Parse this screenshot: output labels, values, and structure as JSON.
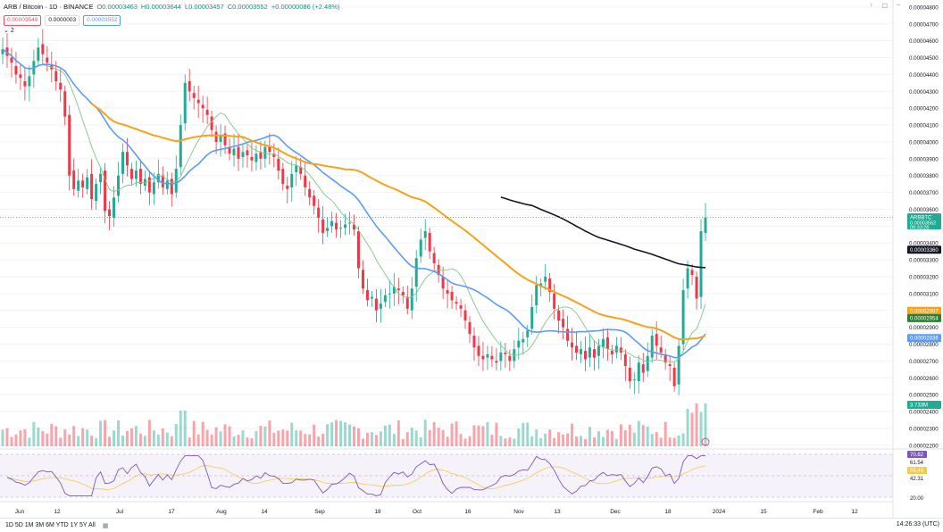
{
  "legend": {
    "title": "ARB / Bitcoin · 1D · BINANCE",
    "open": "O0.00003463",
    "high": "H0.00003644",
    "low": "L0.00003457",
    "close": "C0.00003552",
    "change": "+0.00000086 (+2.48%)"
  },
  "indicators": {
    "box1": "0.00003549",
    "box2": "0.0000003",
    "box3": "0.00003552",
    "count": "2"
  },
  "colors": {
    "up": "#22ab94",
    "down": "#f23645",
    "ma_orange": "#f7a21b",
    "ma_blue": "#5b9cf6",
    "ma_green": "#81c784",
    "ma_black": "#131722",
    "rsi": "#7e57c2",
    "rsi_ma": "#f7c948"
  },
  "price_axis": {
    "ticks": [
      "0.00004800",
      "0.00004700",
      "0.00004600",
      "0.00004500",
      "0.00004400",
      "0.00004300",
      "0.00004200",
      "0.00004100",
      "0.00004000",
      "0.00003900",
      "0.00003800",
      "0.00003700",
      "0.00003600",
      "0.00003500",
      "0.00003400",
      "0.00003300",
      "0.00003200",
      "0.00003100",
      "0.00003000",
      "0.00002900",
      "0.00002800",
      "0.00002700",
      "0.00002600",
      "0.00002500",
      "0.00002400",
      "0.00002300",
      "0.00002200"
    ],
    "labels": [
      {
        "text": "ARBBTC",
        "sub": "0.00003552",
        "time": "09:33:26",
        "value": 3.552e-05,
        "bg": "#22ab94"
      },
      {
        "text": "0.00003360",
        "value": 3.36e-05,
        "bg": "#131722"
      },
      {
        "text": "0.00002997",
        "value": 2.997e-05,
        "bg": "#f7a21b"
      },
      {
        "text": "0.00002954",
        "value": 2.954e-05,
        "bg": "#2e7d32"
      },
      {
        "text": "0.00002836",
        "value": 2.836e-05,
        "bg": "#5b9cf6"
      },
      {
        "text": "3.733M",
        "value": 2.44e-05,
        "bg": "#22ab94"
      }
    ]
  },
  "rsi_axis": {
    "labels": [
      {
        "text": "70.82",
        "bg": "#7e57c2"
      },
      {
        "text": "61.54",
        "bg": ""
      },
      {
        "text": "55.49",
        "bg": "#f7c948"
      },
      {
        "text": "42.31",
        "bg": ""
      },
      {
        "text": "20.00",
        "bg": ""
      }
    ]
  },
  "time_axis": [
    "Jun",
    "12",
    "Jul",
    "17",
    "Aug",
    "14",
    "Sep",
    "18",
    "Oct",
    "16",
    "Nov",
    "13",
    "Dec",
    "18",
    "2024",
    "15",
    "Feb",
    "12"
  ],
  "bottom": {
    "timeframes": "1D  5D  1M  3M  6M  YTD  1Y  5Y  All",
    "clock": "14:26:33 (UTC)"
  },
  "chart_data": {
    "type": "candlestick",
    "ylim": [
      2.22e-05,
      4.81e-05
    ],
    "start_date": "2023-05-25",
    "ohlc_close": [
      45.5,
      45.1,
      44.7,
      44.0,
      43.8,
      43.3,
      43.9,
      44.8,
      45.6,
      45.2,
      44.7,
      44.3,
      43.6,
      43.1,
      41.5,
      38.0,
      37.2,
      37.7,
      37.3,
      37.9,
      36.6,
      37.5,
      38.1,
      35.9,
      35.6,
      36.7,
      38.0,
      39.4,
      38.6,
      37.8,
      38.3,
      37.5,
      37.8,
      37.0,
      37.6,
      38.1,
      37.3,
      37.7,
      36.9,
      38.4,
      41.0,
      43.5,
      43.0,
      42.6,
      42.3,
      42.0,
      41.6,
      40.7,
      40.0,
      40.4,
      39.8,
      39.3,
      39.6,
      39.0,
      39.4,
      39.2,
      38.9,
      39.3,
      39.0,
      39.7,
      39.4,
      39.1,
      38.3,
      37.5,
      37.2,
      38.1,
      38.6,
      38.1,
      37.3,
      36.7,
      36.2,
      35.5,
      34.6,
      34.9,
      35.3,
      34.8,
      34.9,
      35.1,
      35.2,
      34.8,
      32.5,
      31.3,
      30.6,
      30.8,
      30.0,
      30.4,
      30.9,
      31.0,
      31.4,
      31.2,
      30.9,
      30.1,
      31.3,
      33.1,
      34.2,
      34.7,
      33.5,
      32.8,
      32.1,
      31.3,
      31.0,
      30.6,
      30.4,
      30.1,
      29.4,
      28.6,
      27.8,
      27.3,
      27.1,
      27.4,
      27.1,
      26.9,
      27.5,
      27.4,
      27.0,
      27.7,
      28.2,
      28.3,
      28.8,
      30.2,
      31.5,
      31.6,
      32.0,
      31.1,
      30.1,
      29.4,
      29.0,
      28.2,
      27.8,
      27.5,
      27.7,
      27.1,
      27.8,
      27.2,
      27.9,
      28.3,
      27.7,
      27.4,
      27.9,
      27.5,
      26.7,
      25.8,
      25.9,
      26.9,
      26.3,
      27.3,
      28.5,
      27.9,
      27.5,
      26.9,
      26.7,
      25.5,
      27.9,
      31.2,
      32.5,
      32.1,
      30.7,
      34.7,
      35.5
    ],
    "ohlc_open": [
      45.2,
      45.6,
      45.0,
      44.5,
      44.0,
      43.6,
      43.3,
      44.0,
      44.8,
      45.8,
      45.0,
      44.6,
      44.2,
      43.5,
      43.0,
      41.6,
      38.3,
      37.1,
      37.7,
      37.2,
      38.1,
      36.5,
      37.6,
      38.3,
      36.0,
      35.5,
      36.8,
      38.1,
      39.4,
      38.4,
      37.8,
      38.4,
      37.4,
      37.9,
      36.9,
      37.6,
      38.0,
      37.2,
      37.8,
      37.0,
      38.5,
      41.1,
      43.6,
      42.9,
      42.5,
      42.2,
      41.9,
      41.5,
      40.6,
      40.0,
      40.5,
      39.7,
      39.2,
      39.7,
      39.1,
      39.5,
      39.1,
      38.8,
      39.4,
      39.0,
      39.7,
      39.3,
      39.0,
      38.4,
      37.4,
      37.3,
      38.2,
      38.5,
      38.0,
      37.2,
      36.8,
      36.1,
      35.4,
      34.7,
      35.0,
      35.2,
      34.9,
      34.9,
      35.2,
      35.1,
      34.7,
      32.4,
      31.2,
      30.7,
      30.7,
      30.1,
      30.5,
      31.0,
      31.0,
      31.3,
      31.1,
      30.8,
      30.0,
      31.4,
      33.2,
      34.3,
      34.6,
      33.4,
      32.7,
      32.0,
      31.2,
      31.1,
      30.5,
      30.3,
      30.0,
      29.3,
      28.5,
      27.9,
      27.3,
      27.2,
      27.3,
      27.0,
      27.0,
      27.5,
      27.3,
      27.0,
      27.8,
      28.1,
      28.4,
      28.9,
      30.3,
      31.4,
      31.7,
      31.9,
      31.0,
      30.0,
      29.5,
      28.9,
      28.1,
      27.9,
      27.4,
      27.6,
      27.2,
      27.7,
      27.3,
      27.8,
      28.4,
      27.6,
      27.5,
      27.8,
      27.4,
      26.6,
      25.9,
      25.8,
      26.8,
      26.4,
      27.2,
      28.6,
      27.8,
      27.4,
      26.8,
      26.6,
      25.6,
      28.0,
      31.3,
      32.4,
      32.0,
      30.8,
      34.6
    ],
    "volume_max": 10.0,
    "ma_black_start_index": 112
  },
  "time_end_label": "2024"
}
